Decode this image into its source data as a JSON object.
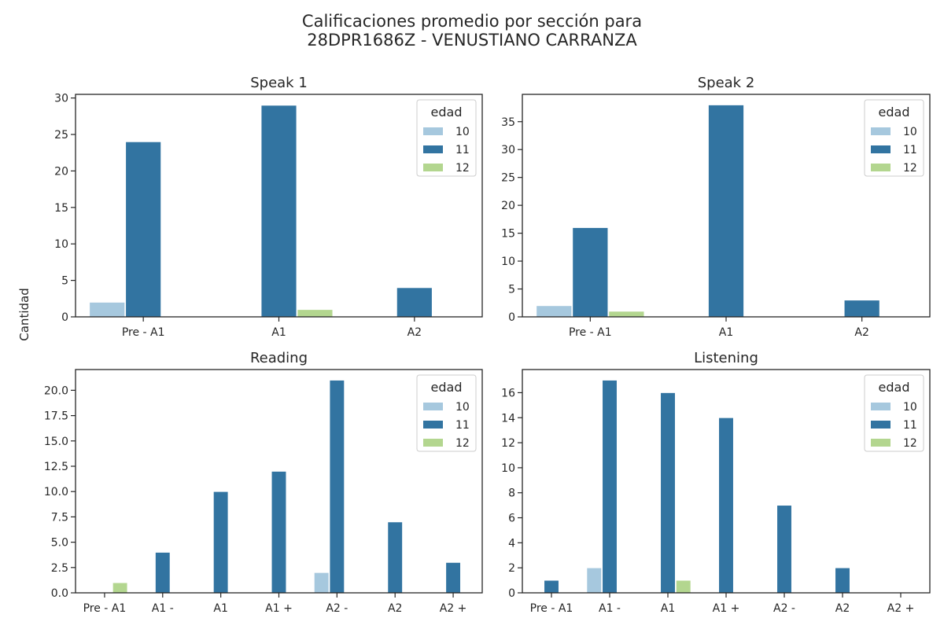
{
  "figure": {
    "title_line1": "Calificaciones promedio por sección para",
    "title_line2": "28DPR1686Z - VENUSTIANO CARRANZA",
    "shared_ylabel": "Cantidad"
  },
  "colors": {
    "10": "#a6c8de",
    "11": "#3274a1",
    "12": "#b3d68f"
  },
  "chart_data": [
    {
      "type": "bar",
      "title": "Speak 1",
      "categories": [
        "Pre - A1",
        "A1",
        "A2"
      ],
      "ylim": [
        0,
        30.5
      ],
      "yticks": [
        0,
        5,
        10,
        15,
        20,
        25,
        30
      ],
      "ytick_labels": [
        "0",
        "5",
        "10",
        "15",
        "20",
        "25",
        "30"
      ],
      "legend": {
        "title": "edad",
        "placement": "top-right"
      },
      "series": [
        {
          "name": "10",
          "values": [
            2,
            0,
            0
          ]
        },
        {
          "name": "11",
          "values": [
            24,
            29,
            4
          ]
        },
        {
          "name": "12",
          "values": [
            0,
            1,
            0
          ]
        }
      ]
    },
    {
      "type": "bar",
      "title": "Speak 2",
      "categories": [
        "Pre - A1",
        "A1",
        "A2"
      ],
      "ylim": [
        0,
        39.9
      ],
      "yticks": [
        0,
        5,
        10,
        15,
        20,
        25,
        30,
        35
      ],
      "ytick_labels": [
        "0",
        "5",
        "10",
        "15",
        "20",
        "25",
        "30",
        "35"
      ],
      "legend": {
        "title": "edad",
        "placement": "top-right"
      },
      "series": [
        {
          "name": "10",
          "values": [
            2,
            0,
            0
          ]
        },
        {
          "name": "11",
          "values": [
            16,
            38,
            3
          ]
        },
        {
          "name": "12",
          "values": [
            1,
            0,
            0
          ]
        }
      ]
    },
    {
      "type": "bar",
      "title": "Reading",
      "categories": [
        "Pre - A1",
        "A1 -",
        "A1",
        "A1 +",
        "A2 -",
        "A2",
        "A2 +"
      ],
      "ylim": [
        0,
        22.05
      ],
      "yticks": [
        0,
        2.5,
        5,
        7.5,
        10,
        12.5,
        15,
        17.5,
        20
      ],
      "ytick_labels": [
        "0.0",
        "2.5",
        "5.0",
        "7.5",
        "10.0",
        "12.5",
        "15.0",
        "17.5",
        "20.0"
      ],
      "legend": {
        "title": "edad",
        "placement": "top-right"
      },
      "series": [
        {
          "name": "10",
          "values": [
            0,
            0,
            0,
            0,
            2,
            0,
            0
          ]
        },
        {
          "name": "11",
          "values": [
            0,
            4,
            10,
            12,
            21,
            7,
            3
          ]
        },
        {
          "name": "12",
          "values": [
            1,
            0,
            0,
            0,
            0,
            0,
            0
          ]
        }
      ]
    },
    {
      "type": "bar",
      "title": "Listening",
      "categories": [
        "Pre - A1",
        "A1 -",
        "A1",
        "A1 +",
        "A2 -",
        "A2",
        "A2 +"
      ],
      "ylim": [
        0,
        17.85
      ],
      "yticks": [
        0,
        2,
        4,
        6,
        8,
        10,
        12,
        14,
        16
      ],
      "ytick_labels": [
        "0",
        "2",
        "4",
        "6",
        "8",
        "10",
        "12",
        "14",
        "16"
      ],
      "legend": {
        "title": "edad",
        "placement": "top-right"
      },
      "series": [
        {
          "name": "10",
          "values": [
            0,
            2,
            0,
            0,
            0,
            0,
            0
          ]
        },
        {
          "name": "11",
          "values": [
            1,
            17,
            16,
            14,
            7,
            2,
            0
          ]
        },
        {
          "name": "12",
          "values": [
            0,
            0,
            1,
            0,
            0,
            0,
            0
          ]
        }
      ]
    }
  ]
}
